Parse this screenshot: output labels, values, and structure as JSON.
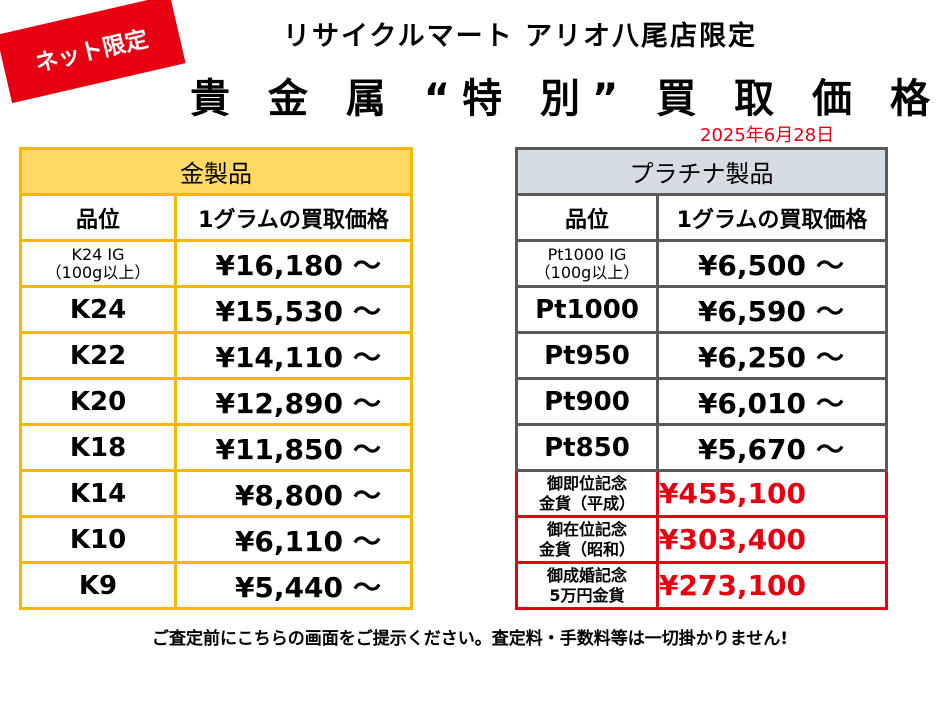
{
  "badge": "ネット限定",
  "subtitle": "リサイクルマート アリオ八尾店限定",
  "title": "貴 金 属 “特 別” 買 取 価 格",
  "date": "2025年6月28日",
  "gold": {
    "header": "金製品",
    "col_grade": "品位",
    "col_price": "1グラムの買取価格",
    "rows": [
      {
        "grade_l1": "K24 IG",
        "grade_l2": "（100g以上）",
        "price": "¥16,180",
        "tilde": "～"
      },
      {
        "grade": "K24",
        "price": "¥15,530",
        "tilde": "～"
      },
      {
        "grade": "K22",
        "price": "¥14,110",
        "tilde": "～"
      },
      {
        "grade": "K20",
        "price": "¥12,890",
        "tilde": "～"
      },
      {
        "grade": "K18",
        "price": "¥11,850",
        "tilde": "～"
      },
      {
        "grade": "K14",
        "price": "¥8,800",
        "tilde": "～"
      },
      {
        "grade": "K10",
        "price": "¥6,110",
        "tilde": "～"
      },
      {
        "grade": "K9",
        "price": "¥5,440",
        "tilde": "～"
      }
    ]
  },
  "platinum": {
    "header": "プラチナ製品",
    "col_grade": "品位",
    "col_price": "1グラムの買取価格",
    "rows": [
      {
        "grade_l1": "Pt1000 IG",
        "grade_l2": "（100g以上）",
        "price": "¥6,500",
        "tilde": "～"
      },
      {
        "grade": "Pt1000",
        "price": "¥6,590",
        "tilde": "～"
      },
      {
        "grade": "Pt950",
        "price": "¥6,250",
        "tilde": "～"
      },
      {
        "grade": "Pt900",
        "price": "¥6,010",
        "tilde": "～"
      },
      {
        "grade": "Pt850",
        "price": "¥5,670",
        "tilde": "～"
      }
    ],
    "special": [
      {
        "label_l1": "御即位記念",
        "label_l2": "金貨（平成）",
        "price": "¥455,100"
      },
      {
        "label_l1": "御在位記念",
        "label_l2": "金貨（昭和）",
        "price": "¥303,400"
      },
      {
        "label_l1": "御成婚記念",
        "label_l2": "5万円金貨",
        "price": "¥273,100"
      }
    ]
  },
  "footer_note": "ご査定前にこちらの画面をご提示ください。査定料・手数料等は一切掛かりません!"
}
